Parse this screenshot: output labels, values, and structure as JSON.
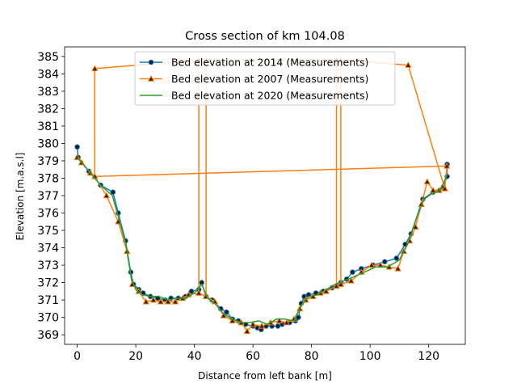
{
  "chart_data": {
    "type": "line",
    "title": "Cross section of km 104.08",
    "xlabel": "Distance from left bank [m]",
    "ylabel": "Elevation [m.a.s.l]",
    "xlim": [
      -4.3,
      132.5
    ],
    "ylim": [
      368.45,
      385.55
    ],
    "xticks": [
      0,
      20,
      40,
      60,
      80,
      100,
      120
    ],
    "yticks": [
      369,
      370,
      371,
      372,
      373,
      374,
      375,
      376,
      377,
      378,
      379,
      380,
      381,
      382,
      383,
      384,
      385
    ],
    "grid": false,
    "legend_position": "upper center",
    "series": [
      {
        "name": "Bed elevation at 2014 (Measurements)",
        "color": "#1f77b4",
        "marker": "circle",
        "marker_face": "#0b1b3a",
        "points": [
          [
            0,
            379.8
          ],
          [
            0.3,
            379.2
          ],
          [
            4,
            378.4
          ],
          [
            8,
            377.6
          ],
          [
            12.2,
            377.2
          ],
          [
            14,
            376.0
          ],
          [
            16.5,
            374.4
          ],
          [
            18.3,
            372.6
          ],
          [
            19.2,
            371.9
          ],
          [
            21,
            371.6
          ],
          [
            22.5,
            371.4
          ],
          [
            25,
            371.2
          ],
          [
            27.5,
            371.1
          ],
          [
            30,
            371.0
          ],
          [
            32,
            371.1
          ],
          [
            34.5,
            371.1
          ],
          [
            37,
            371.2
          ],
          [
            39,
            371.5
          ],
          [
            41.5,
            371.6
          ],
          [
            42.5,
            372.0
          ],
          [
            44,
            371.2
          ],
          [
            46,
            371.0
          ],
          [
            49,
            370.5
          ],
          [
            51,
            370.3
          ],
          [
            53,
            369.9
          ],
          [
            55,
            369.8
          ],
          [
            57.5,
            369.6
          ],
          [
            60,
            369.5
          ],
          [
            61.5,
            369.4
          ],
          [
            62.8,
            369.3
          ],
          [
            64.5,
            369.5
          ],
          [
            66.5,
            369.5
          ],
          [
            68.5,
            369.5
          ],
          [
            70,
            369.6
          ],
          [
            72.5,
            369.7
          ],
          [
            74.5,
            369.8
          ],
          [
            75.5,
            370.0
          ],
          [
            76.5,
            370.8
          ],
          [
            77.5,
            371.2
          ],
          [
            79,
            371.3
          ],
          [
            81.5,
            371.4
          ],
          [
            84,
            371.5
          ],
          [
            87,
            371.7
          ],
          [
            90,
            372.0
          ],
          [
            92,
            372.2
          ],
          [
            94,
            372.6
          ],
          [
            97,
            372.8
          ],
          [
            101,
            373.0
          ],
          [
            105,
            373.2
          ],
          [
            109,
            373.4
          ],
          [
            112,
            374.2
          ],
          [
            114,
            374.8
          ],
          [
            118,
            376.8
          ],
          [
            121.5,
            377.2
          ],
          [
            125,
            377.5
          ],
          [
            126.3,
            378.1
          ],
          [
            126.3,
            378.8
          ]
        ]
      },
      {
        "name": "Bed elevation at 2007 (Measurements)",
        "color": "#ff7f0e",
        "marker": "triangle",
        "marker_face": "#3a1a00",
        "points": [
          [
            0,
            379.2
          ],
          [
            1.5,
            378.9
          ],
          [
            4.5,
            378.3
          ],
          [
            6,
            378.1
          ],
          [
            6,
            384.3
          ],
          [
            41.5,
            384.8
          ],
          [
            41.5,
            371.4
          ],
          [
            44,
            371.2
          ],
          [
            44,
            384.8
          ],
          [
            88.5,
            384.8
          ],
          [
            88.5,
            371.8
          ],
          [
            90,
            371.9
          ],
          [
            90,
            384.8
          ],
          [
            113,
            384.5
          ],
          [
            125.5,
            377.4
          ],
          [
            126.2,
            378.7
          ],
          [
            6,
            378.1
          ],
          [
            10,
            377.0
          ],
          [
            14,
            375.5
          ],
          [
            17,
            373.8
          ],
          [
            18.8,
            371.9
          ],
          [
            21,
            371.5
          ],
          [
            23.5,
            370.9
          ],
          [
            26,
            371.0
          ],
          [
            28.5,
            370.9
          ],
          [
            31,
            370.9
          ],
          [
            33.5,
            370.9
          ],
          [
            36,
            371.1
          ],
          [
            38,
            371.3
          ],
          [
            41.5,
            371.4
          ],
          [
            44,
            371.2
          ],
          [
            47,
            370.9
          ],
          [
            50,
            370.1
          ],
          [
            53,
            369.8
          ],
          [
            56,
            369.7
          ],
          [
            58,
            369.2
          ],
          [
            60,
            369.6
          ],
          [
            63,
            369.5
          ],
          [
            66,
            369.7
          ],
          [
            69,
            369.8
          ],
          [
            71.5,
            369.7
          ],
          [
            74,
            369.9
          ],
          [
            76,
            370.5
          ],
          [
            78,
            371.0
          ],
          [
            80.5,
            371.2
          ],
          [
            83,
            371.4
          ],
          [
            85,
            371.5
          ],
          [
            88.5,
            371.8
          ],
          [
            90,
            371.9
          ],
          [
            93.5,
            372.1
          ],
          [
            97,
            372.6
          ],
          [
            100.5,
            373.0
          ],
          [
            103.5,
            373.0
          ],
          [
            106.5,
            372.9
          ],
          [
            109.5,
            372.8
          ],
          [
            111.5,
            373.8
          ],
          [
            113.5,
            374.4
          ],
          [
            115.5,
            375.2
          ],
          [
            117.5,
            376.5
          ],
          [
            119.5,
            377.8
          ],
          [
            121.5,
            377.3
          ],
          [
            123.5,
            377.3
          ],
          [
            125.5,
            377.4
          ]
        ]
      },
      {
        "name": "Bed elevation at 2020 (Measurements)",
        "color": "#2ca02c",
        "marker": "none",
        "points": [
          [
            0,
            379.2
          ],
          [
            4,
            378.4
          ],
          [
            8,
            377.6
          ],
          [
            12,
            377.0
          ],
          [
            14.5,
            375.5
          ],
          [
            16.5,
            374.3
          ],
          [
            18.5,
            372.2
          ],
          [
            20,
            371.6
          ],
          [
            22,
            371.3
          ],
          [
            25,
            371.2
          ],
          [
            28,
            371.2
          ],
          [
            31,
            371.0
          ],
          [
            34,
            371.1
          ],
          [
            37,
            371.1
          ],
          [
            40,
            371.4
          ],
          [
            42.5,
            371.9
          ],
          [
            44.5,
            371.1
          ],
          [
            47,
            370.8
          ],
          [
            50,
            370.2
          ],
          [
            53,
            369.9
          ],
          [
            56,
            369.7
          ],
          [
            59,
            369.7
          ],
          [
            62,
            369.8
          ],
          [
            65,
            369.6
          ],
          [
            68,
            369.9
          ],
          [
            71,
            369.9
          ],
          [
            74,
            369.8
          ],
          [
            76.5,
            370.7
          ],
          [
            79,
            371.2
          ],
          [
            82,
            371.3
          ],
          [
            85,
            371.6
          ],
          [
            88,
            371.9
          ],
          [
            91,
            372.1
          ],
          [
            94,
            372.3
          ],
          [
            98,
            372.6
          ],
          [
            102,
            372.9
          ],
          [
            106,
            372.9
          ],
          [
            110,
            373.3
          ],
          [
            113,
            374.3
          ],
          [
            116,
            375.8
          ],
          [
            118.5,
            376.8
          ],
          [
            121,
            377.1
          ],
          [
            124,
            377.3
          ],
          [
            126.3,
            378.2
          ]
        ]
      }
    ]
  }
}
